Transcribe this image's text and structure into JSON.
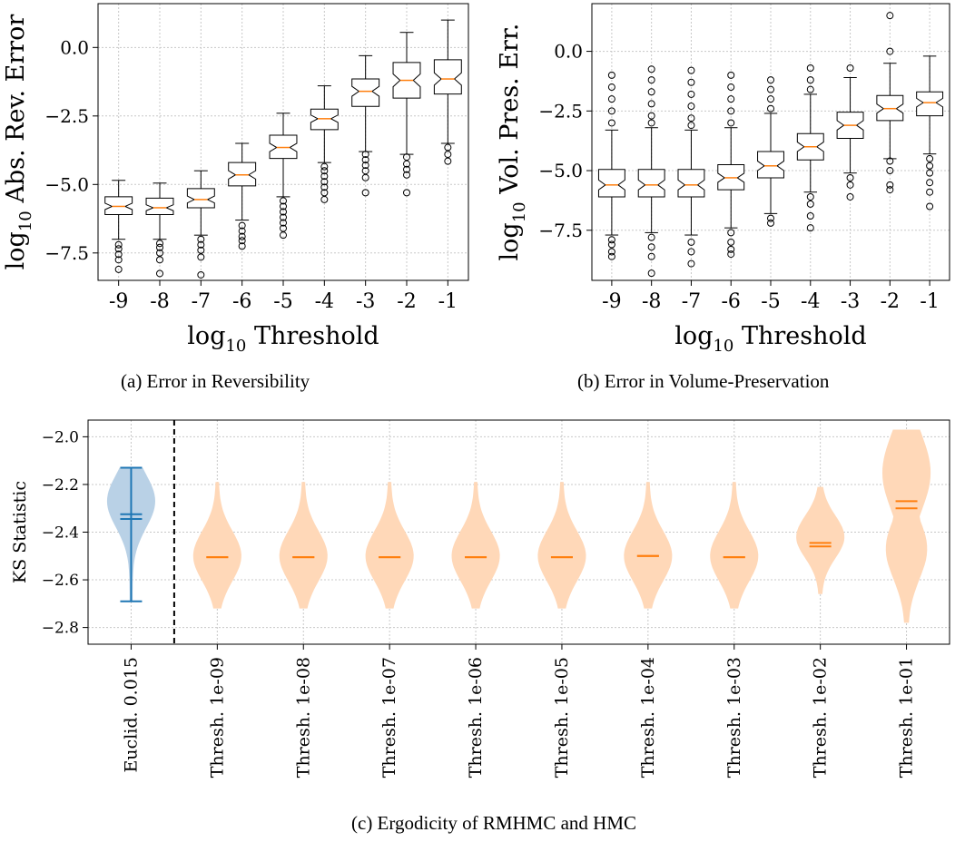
{
  "colors": {
    "blue": "#1f77b4",
    "orange": "#ff7f0e",
    "blue_fill": "#b9d1e6",
    "orange_fill": "#ffd8b8",
    "grid": "#c8c8c8"
  },
  "captions": {
    "a": "(a) Error in Reversibility",
    "b": "(b) Error in Volume-Preservation",
    "c": "(c) Ergodicity of RMHMC and HMC"
  },
  "chart_data": [
    {
      "type": "box",
      "xlabel": "log10 Threshold",
      "ylabel": "log10 Abs. Rev. Error",
      "categories": [
        "-9",
        "-8",
        "-7",
        "-6",
        "-5",
        "-4",
        "-3",
        "-2",
        "-1"
      ],
      "yticks": [
        "0.0",
        "−2.5",
        "−5.0",
        "−7.5"
      ],
      "ylim": [
        -8.5,
        1.6
      ],
      "grid": true,
      "boxes": [
        {
          "whislo": -7.0,
          "q1": -6.1,
          "med": -5.8,
          "q3": -5.45,
          "whishi": -4.85,
          "fliers": [
            -7.2,
            -7.35,
            -7.55,
            -7.75,
            -8.1
          ]
        },
        {
          "whislo": -7.0,
          "q1": -6.1,
          "med": -5.85,
          "q3": -5.5,
          "whishi": -4.95,
          "fliers": [
            -7.15,
            -7.3,
            -7.5,
            -7.75,
            -8.25
          ]
        },
        {
          "whislo": -6.85,
          "q1": -5.85,
          "med": -5.55,
          "q3": -5.15,
          "whishi": -4.5,
          "fliers": [
            -7.0,
            -7.2,
            -7.4,
            -7.65,
            -8.3
          ]
        },
        {
          "whislo": -6.3,
          "q1": -5.05,
          "med": -4.65,
          "q3": -4.2,
          "whishi": -3.5,
          "fliers": [
            -6.5,
            -6.7,
            -6.9,
            -7.05,
            -7.25
          ]
        },
        {
          "whislo": -5.45,
          "q1": -4.05,
          "med": -3.65,
          "q3": -3.2,
          "whishi": -2.4,
          "fliers": [
            -5.6,
            -5.8,
            -6.0,
            -6.2,
            -6.4,
            -6.6,
            -6.85
          ]
        },
        {
          "whislo": -4.2,
          "q1": -3.0,
          "med": -2.6,
          "q3": -2.25,
          "whishi": -1.4,
          "fliers": [
            -4.35,
            -4.5,
            -4.7,
            -4.9,
            -5.1,
            -5.3,
            -5.55
          ]
        },
        {
          "whislo": -3.8,
          "q1": -2.15,
          "med": -1.6,
          "q3": -1.15,
          "whishi": -0.3,
          "fliers": [
            -3.9,
            -4.1,
            -4.3,
            -4.5,
            -4.75,
            -5.3
          ]
        },
        {
          "whislo": -3.9,
          "q1": -1.85,
          "med": -1.2,
          "q3": -0.55,
          "whishi": 0.55,
          "fliers": [
            -4.0,
            -4.25,
            -4.45,
            -4.65,
            -5.3
          ]
        },
        {
          "whislo": -3.5,
          "q1": -1.7,
          "med": -1.15,
          "q3": -0.45,
          "whishi": 1.0,
          "fliers": [
            -3.65,
            -3.9,
            -4.15
          ]
        }
      ]
    },
    {
      "type": "box",
      "xlabel": "log10 Threshold",
      "ylabel": "log10 Vol. Pres. Err.",
      "categories": [
        "-9",
        "-8",
        "-7",
        "-6",
        "-5",
        "-4",
        "-3",
        "-2",
        "-1"
      ],
      "yticks": [
        "0.0",
        "−2.5",
        "−5.0",
        "−7.5"
      ],
      "ylim": [
        -9.6,
        2.0
      ],
      "grid": true,
      "boxes": [
        {
          "whislo": -7.7,
          "q1": -6.1,
          "med": -5.6,
          "q3": -4.95,
          "whishi": -3.3,
          "fliers": [
            -1.0,
            -1.5,
            -2.0,
            -2.5,
            -3.0,
            -7.9,
            -8.1,
            -8.4,
            -8.6
          ]
        },
        {
          "whislo": -7.6,
          "q1": -6.1,
          "med": -5.6,
          "q3": -4.95,
          "whishi": -3.2,
          "fliers": [
            -0.75,
            -1.2,
            -1.7,
            -2.2,
            -2.7,
            -3.0,
            -7.8,
            -8.2,
            -8.6,
            -9.3
          ]
        },
        {
          "whislo": -7.7,
          "q1": -6.1,
          "med": -5.6,
          "q3": -4.95,
          "whishi": -3.3,
          "fliers": [
            -0.8,
            -1.3,
            -1.8,
            -2.3,
            -2.8,
            -3.1,
            -8.0,
            -8.4,
            -8.9
          ]
        },
        {
          "whislo": -7.4,
          "q1": -5.8,
          "med": -5.3,
          "q3": -4.75,
          "whishi": -3.2,
          "fliers": [
            -1.0,
            -1.5,
            -2.0,
            -2.5,
            -3.0,
            -7.6,
            -8.0,
            -8.3,
            -8.5
          ]
        },
        {
          "whislo": -6.8,
          "q1": -5.3,
          "med": -4.8,
          "q3": -4.2,
          "whishi": -2.6,
          "fliers": [
            -1.2,
            -1.6,
            -2.0,
            -2.4,
            -7.0,
            -7.2
          ]
        },
        {
          "whislo": -5.9,
          "q1": -4.55,
          "med": -4.0,
          "q3": -3.45,
          "whishi": -1.8,
          "fliers": [
            -0.7,
            -1.2,
            -1.6,
            -6.1,
            -6.4,
            -6.9,
            -7.4
          ]
        },
        {
          "whislo": -5.1,
          "q1": -3.65,
          "med": -3.1,
          "q3": -2.55,
          "whishi": -1.1,
          "fliers": [
            -0.7,
            -5.3,
            -5.6,
            -6.1
          ]
        },
        {
          "whislo": -4.5,
          "q1": -2.9,
          "med": -2.4,
          "q3": -1.85,
          "whishi": -0.5,
          "fliers": [
            1.5,
            0.0,
            -4.6,
            -5.0,
            -5.6,
            -5.8
          ]
        },
        {
          "whislo": -4.3,
          "q1": -2.7,
          "med": -2.15,
          "q3": -1.7,
          "whishi": -0.2,
          "fliers": [
            -4.5,
            -4.8,
            -5.1,
            -5.5,
            -5.9,
            -6.5
          ]
        }
      ]
    },
    {
      "type": "violin",
      "ylabel": "KS Statistic",
      "categories": [
        "Euclid. 0.015",
        "Thresh. 1e-09",
        "Thresh. 1e-08",
        "Thresh. 1e-07",
        "Thresh. 1e-06",
        "Thresh. 1e-05",
        "Thresh. 1e-04",
        "Thresh. 1e-03",
        "Thresh. 1e-02",
        "Thresh. 1e-01"
      ],
      "yticks": [
        "−2.0",
        "−2.2",
        "−2.4",
        "−2.6",
        "−2.8"
      ],
      "ylim": [
        -2.87,
        -1.93
      ],
      "grid": true,
      "separator_after_index": 0,
      "violins": [
        {
          "series": "Euclid",
          "min": -2.69,
          "max": -2.13,
          "mean": -2.325,
          "median": -2.345,
          "mode": -2.27
        },
        {
          "series": "Thresh",
          "min": -2.72,
          "max": -2.19,
          "mean": -2.505,
          "median": -2.505,
          "mode": -2.5
        },
        {
          "series": "Thresh",
          "min": -2.72,
          "max": -2.19,
          "mean": -2.505,
          "median": -2.505,
          "mode": -2.5
        },
        {
          "series": "Thresh",
          "min": -2.72,
          "max": -2.19,
          "mean": -2.505,
          "median": -2.505,
          "mode": -2.5
        },
        {
          "series": "Thresh",
          "min": -2.72,
          "max": -2.19,
          "mean": -2.505,
          "median": -2.505,
          "mode": -2.5
        },
        {
          "series": "Thresh",
          "min": -2.72,
          "max": -2.19,
          "mean": -2.505,
          "median": -2.505,
          "mode": -2.5
        },
        {
          "series": "Thresh",
          "min": -2.72,
          "max": -2.19,
          "mean": -2.5,
          "median": -2.5,
          "mode": -2.5
        },
        {
          "series": "Thresh",
          "min": -2.72,
          "max": -2.19,
          "mean": -2.505,
          "median": -2.505,
          "mode": -2.5
        },
        {
          "series": "Thresh",
          "min": -2.66,
          "max": -2.21,
          "mean": -2.445,
          "median": -2.46,
          "mode": -2.42
        },
        {
          "series": "Thresh",
          "min": -2.78,
          "max": -1.97,
          "mean": -2.27,
          "median": -2.3,
          "mode": -2.15
        }
      ]
    }
  ]
}
